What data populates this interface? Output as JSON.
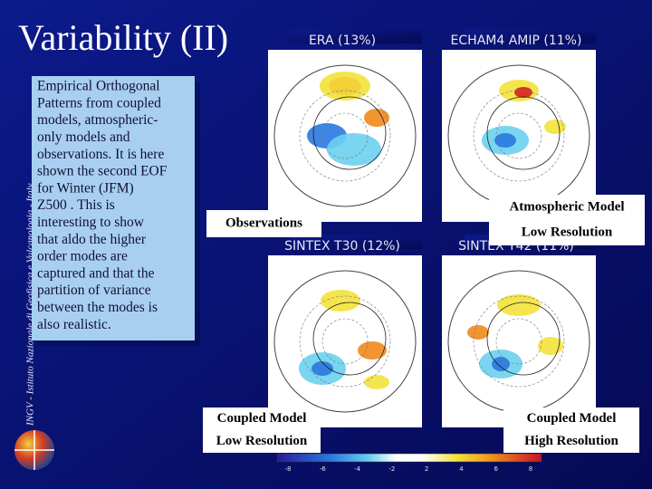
{
  "header": {
    "title": "Variability (II)",
    "sidebar": "INGV - Istituto Nazionale di Geofisica e Vulcanologia - Italy"
  },
  "body_text": {
    "lines": [
      "Empirical Orthogonal",
      "Patterns from coupled",
      "models, atmospheric-",
      "only models and",
      "observations. It is here",
      "shown the second EOF",
      "for Winter (JFM)",
      "Z500 . This is",
      "interesting to show",
      "that aldo the higher",
      "order modes are",
      "captured and that the",
      "partition of variance",
      "between the modes is",
      "also realistic."
    ]
  },
  "panels": [
    {
      "title": "ERA (13%)"
    },
    {
      "title": "ECHAM4 AMIP (11%)"
    },
    {
      "title": "SINTEX T30 (12%)"
    },
    {
      "title": "SINTEX T42 (11%)"
    }
  ],
  "labels": [
    {
      "lines": [
        "Observations"
      ]
    },
    {
      "lines": [
        "Atmospheric Model",
        "Low Resolution"
      ]
    },
    {
      "lines": [
        "Coupled Model",
        "Low Resolution"
      ]
    },
    {
      "lines": [
        "Coupled Model",
        "High Resolution"
      ]
    }
  ],
  "colorbar": {
    "labels": [
      "-8",
      "-6",
      "-4",
      "-2",
      "2",
      "4",
      "6",
      "8"
    ]
  }
}
